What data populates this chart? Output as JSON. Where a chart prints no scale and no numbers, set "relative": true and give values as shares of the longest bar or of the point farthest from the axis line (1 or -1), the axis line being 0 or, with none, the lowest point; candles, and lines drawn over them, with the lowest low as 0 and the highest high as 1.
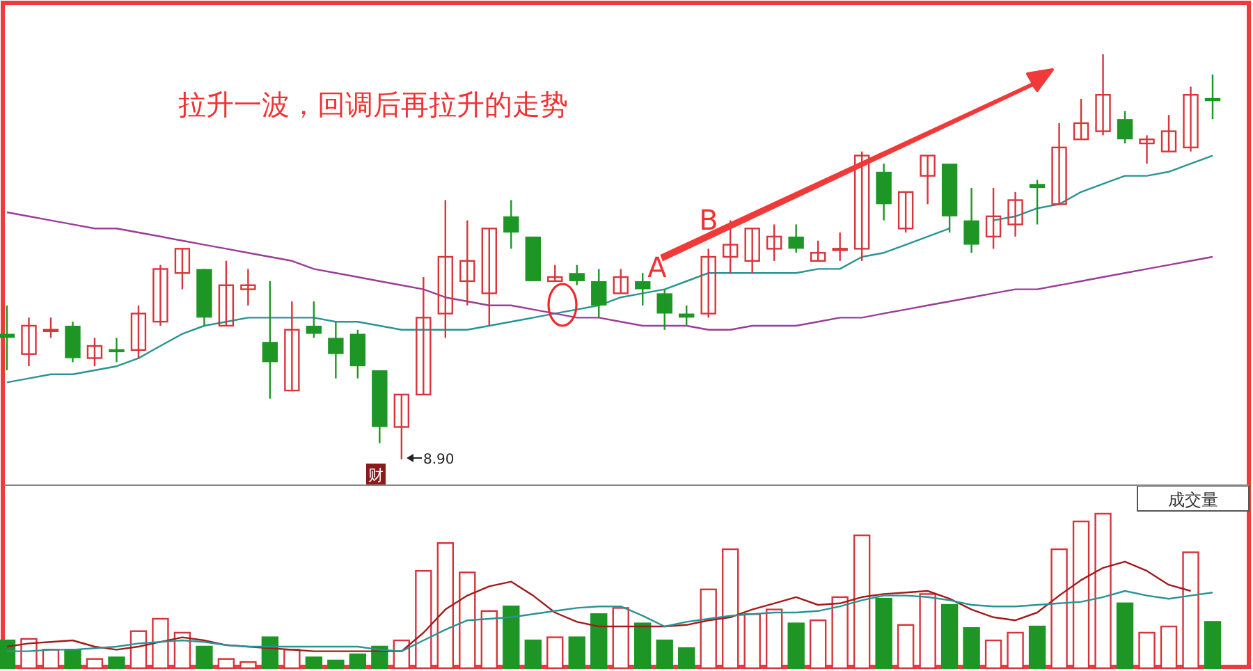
{
  "chart_data": [
    {
      "type": "candlestick",
      "relative": true,
      "categories": [
        null,
        null,
        null,
        null,
        null,
        null,
        null,
        null,
        null,
        null,
        null,
        null,
        null,
        null,
        null,
        null,
        null,
        null,
        null,
        null,
        null,
        null,
        null,
        null,
        null,
        null,
        null,
        null,
        null,
        null,
        null,
        null,
        null,
        null,
        null,
        null,
        null,
        null,
        null,
        null,
        null,
        null,
        null,
        null,
        null,
        null,
        null,
        null,
        null,
        null,
        null,
        null,
        null,
        null,
        null,
        null
      ],
      "ohlc": [
        [
          0.31,
          0.38,
          0.22,
          0.3
        ],
        [
          0.26,
          0.35,
          0.23,
          0.33
        ],
        [
          0.32,
          0.35,
          0.3,
          0.32
        ],
        [
          0.33,
          0.34,
          0.24,
          0.25
        ],
        [
          0.25,
          0.3,
          0.23,
          0.28
        ],
        [
          0.27,
          0.3,
          0.24,
          0.27
        ],
        [
          0.27,
          0.38,
          0.25,
          0.36
        ],
        [
          0.34,
          0.48,
          0.33,
          0.47
        ],
        [
          0.46,
          0.52,
          0.42,
          0.52
        ],
        [
          0.47,
          0.47,
          0.33,
          0.35
        ],
        [
          0.33,
          0.49,
          0.33,
          0.43
        ],
        [
          0.42,
          0.47,
          0.38,
          0.43
        ],
        [
          0.29,
          0.44,
          0.15,
          0.24
        ],
        [
          0.17,
          0.39,
          0.17,
          0.32
        ],
        [
          0.33,
          0.39,
          0.3,
          0.31
        ],
        [
          0.3,
          0.34,
          0.2,
          0.26
        ],
        [
          0.31,
          0.32,
          0.2,
          0.23
        ],
        [
          0.22,
          0.22,
          0.04,
          0.08
        ],
        [
          0.08,
          0.16,
          0,
          0.16
        ],
        [
          0.16,
          0.45,
          0.16,
          0.35
        ],
        [
          0.36,
          0.64,
          0.3,
          0.5
        ],
        [
          0.44,
          0.59,
          0.38,
          0.49
        ],
        [
          0.41,
          0.57,
          0.33,
          0.57
        ],
        [
          0.6,
          0.64,
          0.52,
          0.56
        ],
        [
          0.55,
          0.55,
          0.44,
          0.44
        ],
        [
          0.44,
          0.48,
          0.44,
          0.45
        ],
        [
          0.46,
          0.48,
          0.43,
          0.44
        ],
        [
          0.44,
          0.47,
          0.35,
          0.38
        ],
        [
          0.41,
          0.47,
          0.41,
          0.45
        ],
        [
          0.44,
          0.46,
          0.38,
          0.42
        ],
        [
          0.41,
          0.42,
          0.32,
          0.36
        ],
        [
          0.36,
          0.38,
          0.33,
          0.35
        ],
        [
          0.36,
          0.52,
          0.35,
          0.5
        ],
        [
          0.5,
          0.59,
          0.46,
          0.53
        ],
        [
          0.49,
          0.57,
          0.46,
          0.57
        ],
        [
          0.52,
          0.58,
          0.49,
          0.55
        ],
        [
          0.55,
          0.58,
          0.51,
          0.52
        ],
        [
          0.49,
          0.54,
          0.49,
          0.51
        ],
        [
          0.52,
          0.56,
          0.49,
          0.52
        ],
        [
          0.52,
          0.76,
          0.49,
          0.75
        ],
        [
          0.71,
          0.73,
          0.59,
          0.63
        ],
        [
          0.57,
          0.66,
          0.56,
          0.66
        ],
        [
          0.7,
          0.75,
          0.63,
          0.75
        ],
        [
          0.73,
          0.73,
          0.56,
          0.6
        ],
        [
          0.59,
          0.67,
          0.51,
          0.53
        ],
        [
          0.55,
          0.67,
          0.52,
          0.6
        ],
        [
          0.58,
          0.66,
          0.55,
          0.64
        ],
        [
          0.68,
          0.69,
          0.58,
          0.67
        ],
        [
          0.63,
          0.83,
          0.63,
          0.77
        ],
        [
          0.79,
          0.89,
          0.79,
          0.83
        ],
        [
          0.81,
          1.0,
          0.8,
          0.9
        ],
        [
          0.84,
          0.86,
          0.78,
          0.79
        ],
        [
          0.78,
          0.8,
          0.73,
          0.79
        ],
        [
          0.76,
          0.85,
          0.76,
          0.81
        ],
        [
          0.77,
          0.92,
          0.76,
          0.9
        ],
        [
          0.89,
          0.95,
          0.84,
          0.89
        ]
      ],
      "colors": [
        "#1e9626",
        "#d7343b",
        "#d7343b",
        "#1e9626",
        "#d7343b",
        "#1e9626",
        "#d7343b",
        "#d7343b",
        "#d7343b",
        "#1e9626",
        "#d7343b",
        "#d7343b",
        "#1e9626",
        "#d7343b",
        "#1e9626",
        "#1e9626",
        "#1e9626",
        "#1e9626",
        "#d7343b",
        "#d7343b",
        "#d7343b",
        "#d7343b",
        "#d7343b",
        "#1e9626",
        "#1e9626",
        "#d7343b",
        "#1e9626",
        "#1e9626",
        "#d7343b",
        "#1e9626",
        "#1e9626",
        "#1e9626",
        "#d7343b",
        "#d7343b",
        "#d7343b",
        "#d7343b",
        "#1e9626",
        "#d7343b",
        "#d7343b",
        "#d7343b",
        "#1e9626",
        "#d7343b",
        "#d7343b",
        "#1e9626",
        "#1e9626",
        "#d7343b",
        "#d7343b",
        "#1e9626",
        "#d7343b",
        "#d7343b",
        "#d7343b",
        "#1e9626",
        "#d7343b",
        "#d7343b",
        "#d7343b",
        "#1e9626"
      ],
      "series": [
        {
          "type": "line",
          "color": "#2a9393",
          "values": [
            0.19,
            0.2,
            0.21,
            0.21,
            0.22,
            0.23,
            0.25,
            0.28,
            0.31,
            0.33,
            0.34,
            0.35,
            0.35,
            0.35,
            0.35,
            0.34,
            0.34,
            0.33,
            0.32,
            0.32,
            0.32,
            0.32,
            0.33,
            0.34,
            0.35,
            0.36,
            0.37,
            0.38,
            0.4,
            0.41,
            0.42,
            0.44,
            0.46,
            0.46,
            0.46,
            0.46,
            0.46,
            0.47,
            0.47,
            0.5,
            0.51,
            0.53,
            0.55,
            0.57,
            null,
            0.59,
            0.6,
            0.62,
            0.63,
            0.66,
            0.68,
            0.7,
            0.7,
            0.71,
            0.73,
            0.75
          ]
        },
        {
          "type": "line",
          "color": "#9b3d96",
          "values": [
            0.61,
            0.6,
            0.59,
            0.58,
            0.57,
            0.57,
            0.56,
            0.55,
            0.54,
            0.53,
            0.52,
            0.51,
            0.5,
            0.49,
            0.47,
            0.46,
            0.45,
            0.44,
            0.43,
            0.42,
            0.4,
            0.39,
            0.38,
            0.38,
            0.37,
            0.36,
            0.35,
            0.35,
            0.34,
            0.33,
            0.33,
            0.33,
            0.32,
            0.32,
            0.33,
            0.33,
            0.33,
            0.34,
            0.35,
            0.35,
            0.36,
            0.37,
            0.38,
            0.39,
            0.4,
            0.41,
            0.42,
            0.42,
            0.43,
            0.44,
            0.45,
            0.46,
            0.47,
            0.48,
            0.49,
            0.5
          ]
        }
      ],
      "annotations": [
        "拉升一波，回调后再拉升的走势",
        "A",
        "B",
        "8.90",
        "财"
      ]
    },
    {
      "type": "bar",
      "relative": true,
      "title": "成交量",
      "categories": [
        null,
        null,
        null,
        null,
        null,
        null,
        null,
        null,
        null,
        null,
        null,
        null,
        null,
        null,
        null,
        null,
        null,
        null,
        null,
        null,
        null,
        null,
        null,
        null,
        null,
        null,
        null,
        null,
        null,
        null,
        null,
        null,
        null,
        null,
        null,
        null,
        null,
        null,
        null,
        null,
        null,
        null,
        null,
        null,
        null,
        null,
        null,
        null,
        null,
        null,
        null,
        null,
        null,
        null,
        null,
        null
      ],
      "series": [
        {
          "type": "bar",
          "values": [
            0.18,
            0.19,
            0.12,
            0.12,
            0.06,
            0.07,
            0.24,
            0.32,
            0.23,
            0.14,
            0.06,
            0.04,
            0.2,
            0.12,
            0.07,
            0.05,
            0.09,
            0.14,
            0.18,
            0.63,
            0.81,
            0.62,
            0.37,
            0.4,
            0.18,
            0.2,
            0.2,
            0.35,
            0.39,
            0.29,
            0.18,
            0.13,
            0.51,
            0.77,
            0.35,
            0.38,
            0.29,
            0.31,
            0.46,
            0.86,
            0.45,
            0.28,
            0.48,
            0.41,
            0.26,
            0.18,
            0.23,
            0.27,
            0.77,
            0.95,
            1.0,
            0.42,
            0.23,
            0.27,
            0.75,
            0.3
          ],
          "colors": [
            "#1e9626",
            "#d7343b",
            "#d7343b",
            "#1e9626",
            "#d7343b",
            "#1e9626",
            "#d7343b",
            "#d7343b",
            "#d7343b",
            "#1e9626",
            "#d7343b",
            "#d7343b",
            "#1e9626",
            "#d7343b",
            "#1e9626",
            "#1e9626",
            "#1e9626",
            "#1e9626",
            "#d7343b",
            "#d7343b",
            "#d7343b",
            "#d7343b",
            "#d7343b",
            "#1e9626",
            "#1e9626",
            "#d7343b",
            "#1e9626",
            "#1e9626",
            "#d7343b",
            "#1e9626",
            "#1e9626",
            "#1e9626",
            "#d7343b",
            "#d7343b",
            "#d7343b",
            "#d7343b",
            "#1e9626",
            "#d7343b",
            "#d7343b",
            "#d7343b",
            "#1e9626",
            "#d7343b",
            "#d7343b",
            "#1e9626",
            "#1e9626",
            "#d7343b",
            "#d7343b",
            "#1e9626",
            "#d7343b",
            "#d7343b",
            "#d7343b",
            "#1e9626",
            "#d7343b",
            "#d7343b",
            "#d7343b",
            "#1e9626"
          ]
        },
        {
          "type": "line",
          "color": "#a01c1c",
          "values": [
            0.14,
            0.16,
            0.17,
            0.18,
            0.14,
            0.12,
            0.14,
            0.17,
            0.2,
            0.18,
            0.15,
            0.14,
            0.13,
            0.12,
            0.11,
            0.11,
            0.11,
            0.11,
            0.11,
            0.23,
            0.38,
            0.47,
            0.53,
            0.56,
            0.47,
            0.36,
            0.3,
            0.27,
            0.27,
            0.27,
            0.27,
            0.28,
            0.31,
            0.33,
            0.38,
            0.42,
            0.46,
            0.41,
            0.42,
            0.46,
            0.48,
            0.49,
            0.5,
            0.45,
            0.38,
            0.33,
            0.31,
            0.36,
            0.47,
            0.57,
            0.65,
            0.69,
            0.63,
            0.54,
            0.5,
            null
          ]
        },
        {
          "type": "line",
          "color": "#2a9393",
          "values": [
            0.11,
            0.11,
            0.12,
            0.12,
            0.13,
            0.14,
            0.16,
            0.17,
            0.18,
            0.17,
            0.15,
            0.14,
            0.14,
            0.14,
            0.14,
            0.14,
            0.14,
            0.12,
            0.11,
            0.18,
            0.25,
            0.31,
            0.32,
            0.33,
            0.35,
            0.37,
            0.39,
            0.4,
            0.4,
            0.34,
            0.27,
            0.3,
            0.32,
            0.34,
            0.35,
            0.36,
            0.36,
            0.37,
            0.4,
            0.44,
            0.47,
            0.47,
            0.46,
            0.44,
            0.41,
            0.4,
            0.4,
            0.41,
            0.42,
            0.43,
            0.46,
            0.5,
            0.47,
            0.45,
            0.47,
            0.49
          ]
        }
      ]
    }
  ]
}
